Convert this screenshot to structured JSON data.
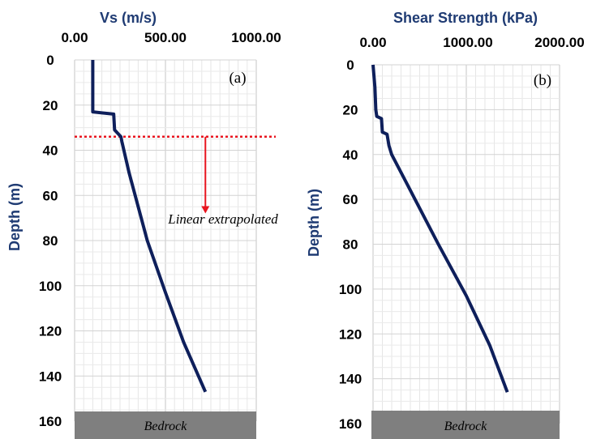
{
  "chart_data": [
    {
      "type": "line",
      "panel_label": "(a)",
      "xlabel": "Vs (m/s)",
      "ylabel": "Depth (m)",
      "xlim": [
        0,
        1000
      ],
      "ylim": [
        0,
        160
      ],
      "y_inverted": true,
      "x_axis_position": "top",
      "x_ticks": [
        "0.00",
        "500.00",
        "1000.00"
      ],
      "y_ticks": [
        "0",
        "20",
        "40",
        "60",
        "80",
        "100",
        "120",
        "140",
        "160"
      ],
      "grid": true,
      "series": [
        {
          "color": "#0e1f5b",
          "points": [
            [
              100,
              0
            ],
            [
              100,
              23
            ],
            [
              215,
              24
            ],
            [
              220,
              31
            ],
            [
              255,
              34
            ],
            [
              260,
              36
            ],
            [
              300,
              50
            ],
            [
              400,
              80
            ],
            [
              500,
              103
            ],
            [
              600,
              125
            ],
            [
              720,
              147
            ]
          ]
        }
      ],
      "annotations": {
        "dashed_line_depth": 34,
        "arrow_from_depth": 34,
        "arrow_to_depth": 68,
        "arrow_x": 720,
        "text": "Linear extrapolated",
        "bedrock_label": "Bedrock"
      }
    },
    {
      "type": "line",
      "panel_label": "(b)",
      "xlabel": "Shear Strength (kPa)",
      "ylabel": "Depth (m)",
      "xlim": [
        0,
        2000
      ],
      "ylim": [
        0,
        160
      ],
      "y_inverted": true,
      "x_axis_position": "top",
      "x_ticks": [
        "0.00",
        "1000.00",
        "2000.00"
      ],
      "y_ticks": [
        "0",
        "20",
        "40",
        "60",
        "80",
        "100",
        "120",
        "140",
        "160"
      ],
      "grid": true,
      "series": [
        {
          "color": "#0e1f5b",
          "points": [
            [
              0,
              0
            ],
            [
              20,
              10
            ],
            [
              30,
              20
            ],
            [
              40,
              23
            ],
            [
              90,
              24
            ],
            [
              100,
              30
            ],
            [
              150,
              31
            ],
            [
              170,
              36
            ],
            [
              200,
              40
            ],
            [
              350,
              52
            ],
            [
              700,
              80
            ],
            [
              1000,
              103
            ],
            [
              1250,
              125
            ],
            [
              1440,
              146
            ]
          ]
        }
      ],
      "annotations": {
        "bedrock_label": "Bedrock"
      }
    }
  ]
}
